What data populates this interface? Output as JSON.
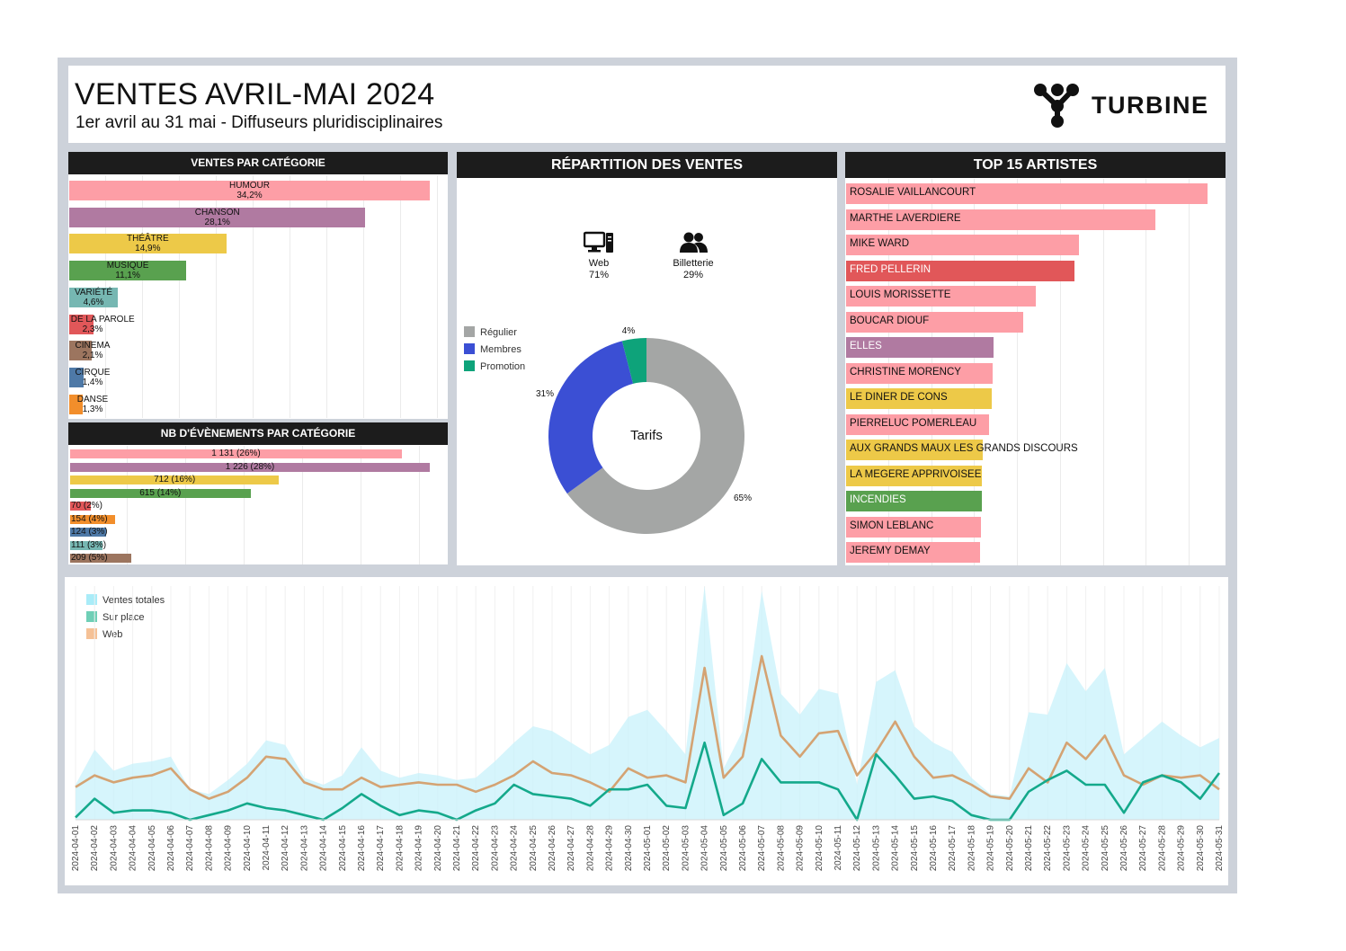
{
  "header": {
    "title": "VENTES AVRIL-MAI 2024",
    "subtitle": "1er avril au 31 mai  - Diffuseurs pluridisciplinaires",
    "logo_text": "TURBINE"
  },
  "panels": {
    "ventes_par_categorie": "VENTES PAR CATÉGORIE",
    "nb_evenements": "NB D'ÉVÈNEMENTS PAR CATÉGORIE",
    "repartition": "RÉPARTITION DES VENTES",
    "top_artistes": "TOP 15 ARTISTES"
  },
  "channels": {
    "web": {
      "label": "Web",
      "pct": "71%"
    },
    "billetterie": {
      "label": "Billetterie",
      "pct": "29%"
    }
  },
  "colors": {
    "humour": "#fd9ea6",
    "chanson": "#b07aa1",
    "theatre": "#edc948",
    "musique": "#59a14f",
    "variete": "#76b7b2",
    "parole": "#e15759",
    "cinema": "#9c755f",
    "cirque": "#4e79a7",
    "danse": "#f28e2b",
    "regulier": "#a4a6a5",
    "membres": "#3b4fd4",
    "promotion": "#0ea37a",
    "total": "#aee9f7",
    "surplace": "#14a98b",
    "web": "#d4a373"
  },
  "chart_data": [
    {
      "type": "bar",
      "title": "VENTES PAR CATÉGORIE",
      "categories": [
        "HUMOUR",
        "CHANSON",
        "THÉÂTRE",
        "MUSIQUE",
        "VARIÉTÉ",
        "ART DE LA PAROLE",
        "CINEMA",
        "CIRQUE",
        "DANSE"
      ],
      "values": [
        34.2,
        28.1,
        14.9,
        11.1,
        4.6,
        2.3,
        2.1,
        1.4,
        1.3
      ],
      "labels": [
        "34,2%",
        "28,1%",
        "14,9%",
        "11,1%",
        "4,6%",
        "2,3%",
        "2,1%",
        "1,4%",
        "1,3%"
      ],
      "color_keys": [
        "humour",
        "chanson",
        "theatre",
        "musique",
        "variete",
        "parole",
        "cinema",
        "cirque",
        "danse"
      ],
      "xlim": [
        0,
        35
      ]
    },
    {
      "type": "bar",
      "title": "NB D'ÉVÈNEMENTS PAR CATÉGORIE",
      "values": [
        1131,
        1226,
        712,
        615,
        70,
        154,
        124,
        111,
        209
      ],
      "labels": [
        "1 131  (26%)",
        "1 226  (28%)",
        "712  (16%)",
        "615  (14%)",
        "70  (2%)",
        "154  (4%)",
        "124  (3%)",
        "111  (3%)",
        "209  (5%)"
      ],
      "color_keys": [
        "humour",
        "chanson",
        "theatre",
        "musique",
        "parole",
        "danse",
        "cirque",
        "variete",
        "cinema"
      ],
      "xlim": [
        0,
        1250
      ]
    },
    {
      "type": "pie",
      "title": "Tarifs",
      "categories": [
        "Régulier",
        "Membres",
        "Promotion"
      ],
      "values": [
        65,
        31,
        4
      ],
      "labels": [
        "65%",
        "31%",
        "4%"
      ],
      "color_keys": [
        "regulier",
        "membres",
        "promotion"
      ]
    },
    {
      "type": "bar",
      "title": "TOP 15 ARTISTES",
      "categories": [
        "ROSALIE VAILLANCOURT",
        "MARTHE LAVERDIERE",
        "MIKE WARD",
        "FRED PELLERIN",
        "LOUIS MORISSETTE",
        "BOUCAR DIOUF",
        "ELLES",
        "CHRISTINE MORENCY",
        "LE DINER DE CONS",
        "PIERRELUC POMERLEAU",
        "AUX GRANDS MAUX LES GRANDS DISCOURS",
        "LA MEGERE APPRIVOISEE",
        "INCENDIES",
        "SIMON LEBLANC",
        "JEREMY DEMAY"
      ],
      "values": [
        100,
        85.5,
        64.5,
        63.3,
        52.4,
        49.1,
        40.8,
        40.6,
        40.4,
        39.6,
        37.7,
        37.6,
        37.6,
        37.3,
        37.1
      ],
      "color_keys": [
        "humour",
        "humour",
        "humour",
        "parole",
        "humour",
        "humour",
        "chanson",
        "humour",
        "theatre",
        "humour",
        "theatre",
        "theatre",
        "musique",
        "humour",
        "humour"
      ],
      "xlim": [
        0,
        100
      ]
    },
    {
      "type": "area",
      "x": [
        "2024-04-01",
        "2024-04-02",
        "2024-04-03",
        "2024-04-04",
        "2024-04-05",
        "2024-04-06",
        "2024-04-07",
        "2024-04-08",
        "2024-04-09",
        "2024-04-10",
        "2024-04-11",
        "2024-04-12",
        "2024-04-13",
        "2024-04-14",
        "2024-04-15",
        "2024-04-16",
        "2024-04-17",
        "2024-04-18",
        "2024-04-19",
        "2024-04-20",
        "2024-04-21",
        "2024-04-22",
        "2024-04-23",
        "2024-04-24",
        "2024-04-25",
        "2024-04-26",
        "2024-04-27",
        "2024-04-28",
        "2024-04-29",
        "2024-04-30",
        "2024-05-01",
        "2024-05-02",
        "2024-05-03",
        "2024-05-04",
        "2024-05-05",
        "2024-05-06",
        "2024-05-07",
        "2024-05-08",
        "2024-05-09",
        "2024-05-10",
        "2024-05-11",
        "2024-05-12",
        "2024-05-13",
        "2024-05-14",
        "2024-05-15",
        "2024-05-16",
        "2024-05-17",
        "2024-05-18",
        "2024-05-19",
        "2024-05-20",
        "2024-05-21",
        "2024-05-22",
        "2024-05-23",
        "2024-05-24",
        "2024-05-25",
        "2024-05-26",
        "2024-05-27",
        "2024-05-28",
        "2024-05-29",
        "2024-05-30",
        "2024-05-31"
      ],
      "series": [
        {
          "name": "Ventes totales",
          "color_key": "total",
          "values": [
            15,
            30,
            21,
            24,
            25,
            27,
            13,
            11,
            17,
            24,
            34,
            32,
            18,
            15,
            19,
            31,
            21,
            18,
            20,
            19,
            17,
            18,
            25,
            33,
            40,
            38,
            33,
            28,
            32,
            44,
            47,
            38,
            28,
            100,
            22,
            38,
            98,
            54,
            45,
            56,
            54,
            15,
            59,
            64,
            40,
            33,
            29,
            18,
            11,
            10,
            46,
            45,
            67,
            55,
            65,
            28,
            35,
            42,
            36,
            31,
            35
          ]
        },
        {
          "name": "Sur place",
          "color_key": "surplace",
          "values": [
            1,
            9,
            3,
            4,
            4,
            3,
            0,
            2,
            4,
            7,
            5,
            4,
            2,
            0,
            5,
            11,
            6,
            2,
            4,
            3,
            0,
            4,
            7,
            15,
            11,
            10,
            9,
            6,
            13,
            13,
            15,
            6,
            5,
            33,
            2,
            7,
            26,
            16,
            16,
            16,
            13,
            0,
            28,
            19,
            9,
            10,
            8,
            2,
            0,
            0,
            12,
            17,
            21,
            15,
            15,
            3,
            16,
            19,
            16,
            9,
            20
          ]
        },
        {
          "name": "Web",
          "color_key": "web",
          "values": [
            14,
            19,
            16,
            18,
            19,
            22,
            13,
            9,
            12,
            18,
            27,
            26,
            16,
            13,
            13,
            18,
            14,
            15,
            16,
            15,
            15,
            12,
            15,
            19,
            25,
            20,
            19,
            16,
            12,
            22,
            18,
            19,
            16,
            65,
            18,
            27,
            70,
            36,
            27,
            37,
            38,
            19,
            29,
            42,
            27,
            18,
            19,
            15,
            10,
            9,
            22,
            16,
            33,
            26,
            36,
            19,
            15,
            19,
            18,
            19,
            13
          ]
        }
      ],
      "ylim": [
        0,
        100
      ]
    }
  ]
}
